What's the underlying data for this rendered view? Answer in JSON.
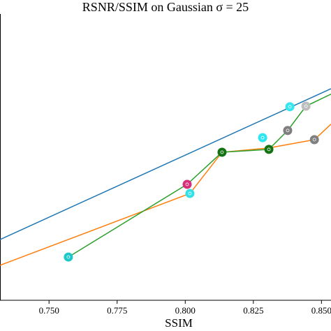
{
  "chart_data": {
    "type": "line",
    "title": "RSNR/SSIM on Gaussian σ = 25",
    "x_label": "SSIM",
    "xlim": [
      0.732,
      0.8535
    ],
    "ylim": [
      0,
      1
    ],
    "xticks": [
      {
        "value": 0.75,
        "label": "0.750"
      },
      {
        "value": 0.775,
        "label": "0.775"
      },
      {
        "value": 0.8,
        "label": "0.800"
      },
      {
        "value": 0.825,
        "label": "0.825"
      },
      {
        "value": 0.85,
        "label": "0.850"
      }
    ],
    "series": [
      {
        "color": "#1f77b4",
        "x": [
          0.732,
          0.8535
        ],
        "values": [
          0.212,
          0.739
        ]
      },
      {
        "color": "#ff7f0e",
        "x": [
          0.732,
          0.8017,
          0.8135,
          0.8307,
          0.8474,
          0.8535
        ],
        "values": [
          0.122,
          0.373,
          0.517,
          0.532,
          0.561,
          0.615
        ]
      },
      {
        "color": "#2ca02c",
        "x": [
          0.7571,
          0.8007,
          0.8135,
          0.8307,
          0.8376,
          0.8443,
          0.8535
        ],
        "values": [
          0.151,
          0.405,
          0.517,
          0.527,
          0.593,
          0.678,
          0.72
        ]
      }
    ],
    "markers": {
      "x": [
        0.7571,
        0.8007,
        0.8017,
        0.8135,
        0.8284,
        0.8307,
        0.8376,
        0.8384,
        0.8443,
        0.8474
      ],
      "values": [
        0.151,
        0.405,
        0.373,
        0.517,
        0.568,
        0.527,
        0.593,
        0.676,
        0.678,
        0.561
      ],
      "colors": [
        "#1ec8c8",
        "#d6307a",
        "#33e0e8",
        "#137313",
        "#2ee6f0",
        "#137313",
        "#7f7f7f",
        "#33e6f0",
        "#bdbdbd",
        "#808080"
      ]
    }
  }
}
